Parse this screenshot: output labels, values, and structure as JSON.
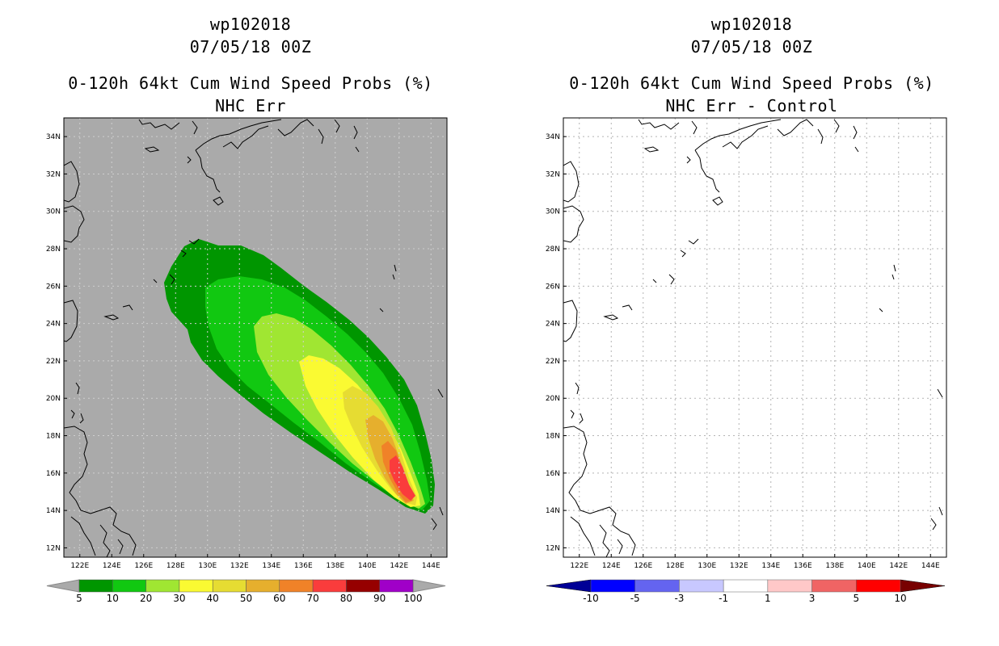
{
  "left_panel": {
    "storm_id": "wp102018",
    "date": "07/05/18 00Z",
    "product": "0-120h 64kt Cum Wind Speed Probs (%)",
    "subtitle": "NHC Err",
    "lat_labels": [
      "34N",
      "32N",
      "30N",
      "28N",
      "26N",
      "24N",
      "22N",
      "20N",
      "18N",
      "16N",
      "14N",
      "12N"
    ],
    "lon_labels": [
      "122E",
      "124E",
      "126E",
      "128E",
      "130E",
      "132E",
      "134E",
      "136E",
      "138E",
      "140E",
      "142E",
      "144E"
    ],
    "legend_labels": [
      "5",
      "10",
      "20",
      "30",
      "40",
      "50",
      "60",
      "70",
      "80",
      "90",
      "100"
    ],
    "legend_colors": [
      "#009600",
      "#11c811",
      "#a0e632",
      "#fafa32",
      "#e6dc32",
      "#e6af2d",
      "#f08228",
      "#fa3c3c",
      "#960000",
      "#a000c8"
    ],
    "background_color": "#aaaaaa"
  },
  "right_panel": {
    "storm_id": "wp102018",
    "date": "07/05/18 00Z",
    "product": "0-120h 64kt Cum Wind Speed Probs (%)",
    "subtitle": "NHC Err - Control",
    "lat_labels": [
      "34N",
      "32N",
      "30N",
      "28N",
      "26N",
      "24N",
      "22N",
      "20N",
      "18N",
      "16N",
      "14N",
      "12N"
    ],
    "lon_labels": [
      "122E",
      "124E",
      "126E",
      "128E",
      "130E",
      "132E",
      "134E",
      "136E",
      "138E",
      "140E",
      "142E",
      "144E"
    ],
    "legend_labels": [
      "-10",
      "-5",
      "-3",
      "-1",
      "1",
      "3",
      "5",
      "10"
    ],
    "legend_colors": [
      "#0000ff",
      "#6464f0",
      "#c8c8ff",
      "#ffffff",
      "#ffc8c8",
      "#f06464",
      "#ff0000"
    ],
    "legend_end_colors": [
      "#000096",
      "#780000"
    ],
    "background_color": "#ffffff"
  }
}
